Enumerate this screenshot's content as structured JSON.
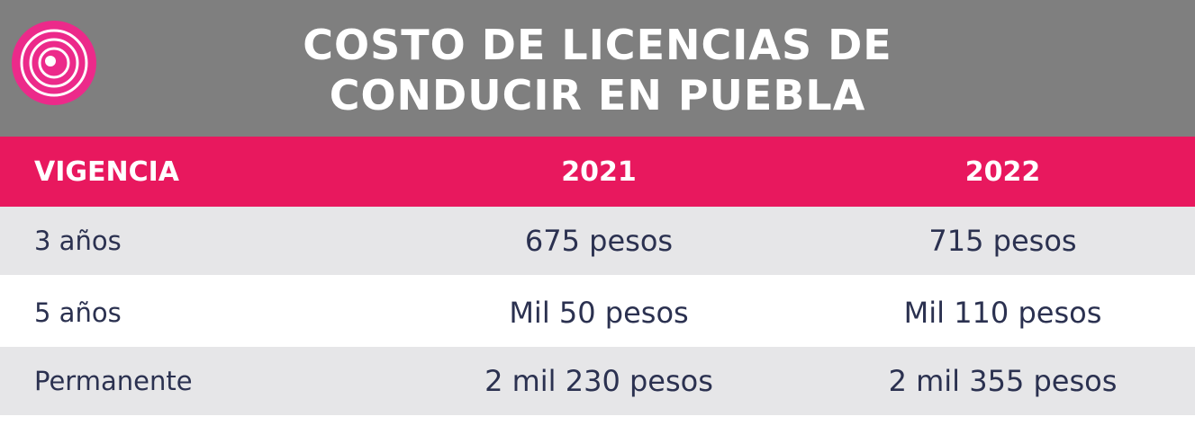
{
  "header": {
    "title_lines": [
      "COSTO DE LICENCIAS DE",
      "CONDUCIR EN PUEBLA"
    ]
  },
  "table": {
    "columns": [
      "VIGENCIA",
      "2021",
      "2022"
    ],
    "rows": [
      [
        "3 años",
        "675 pesos",
        "715 pesos"
      ],
      [
        "5 años",
        "Mil 50 pesos",
        "Mil 110 pesos"
      ],
      [
        "Permanente",
        "2 mil 230 pesos",
        "2 mil 355 pesos"
      ]
    ]
  }
}
